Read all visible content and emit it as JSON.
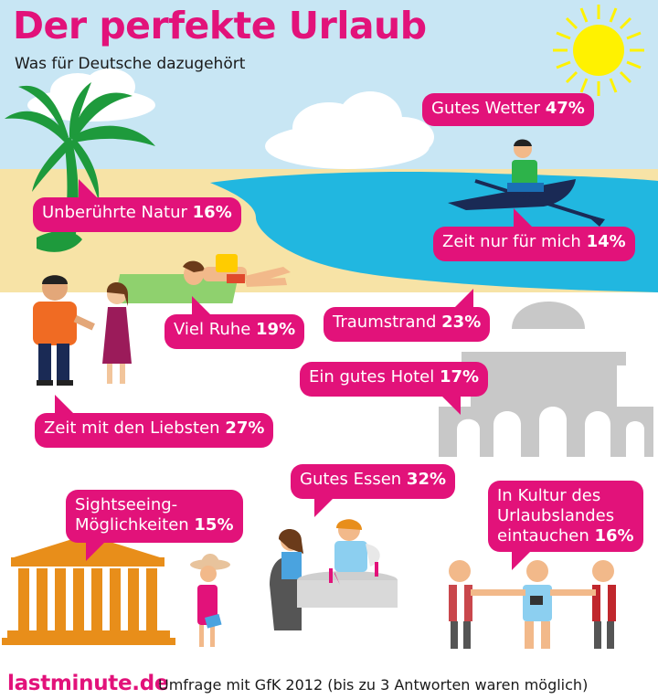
{
  "header": {
    "title": "Der perfekte Urlaub",
    "subtitle": "Was für Deutsche dazugehört"
  },
  "chart_data": {
    "type": "bar",
    "title": "Der perfekte Urlaub",
    "subtitle": "Was für Deutsche dazugehört",
    "unit": "%",
    "categories": [
      "Gutes Wetter",
      "Unberührte Natur",
      "Zeit nur für mich",
      "Viel Ruhe",
      "Traumstrand",
      "Ein gutes Hotel",
      "Zeit mit den Liebsten",
      "Gutes Essen",
      "Sightseeing-Möglichkeiten",
      "In Kultur des Urlaubslandes eintauchen"
    ],
    "values": [
      47,
      16,
      14,
      19,
      23,
      17,
      27,
      32,
      15,
      16
    ],
    "labels": {
      "wetter": {
        "line1": "Gutes Wetter ",
        "value": "47%"
      },
      "natur": {
        "line1": "Unberührte Natur ",
        "value": "16%"
      },
      "zeit_mich": {
        "line1": "Zeit nur für mich ",
        "value": "14%"
      },
      "ruhe": {
        "line1": "Viel Ruhe ",
        "value": "19%"
      },
      "strand": {
        "line1": "Traumstrand ",
        "value": "23%"
      },
      "hotel": {
        "line1": "Ein gutes Hotel ",
        "value": "17%"
      },
      "liebsten": {
        "line1": "Zeit mit den Liebsten ",
        "value": "27%"
      },
      "essen": {
        "line1": "Gutes Essen ",
        "value": "32%"
      },
      "sightseeing": {
        "line1": "Sightseeing-",
        "line2": "Möglichkeiten ",
        "value": "15%"
      },
      "kultur": {
        "line1": "In Kultur des",
        "line2": "Urlaubslandes",
        "line3": "eintauchen ",
        "value": "16%"
      }
    }
  },
  "footer": {
    "brand": "lastminute.de",
    "note": "Umfrage mit GfK 2012 (bis zu 3 Antworten waren möglich)"
  },
  "colors": {
    "accent": "#e2127a",
    "sky": "#c8e6f4",
    "sea": "#21b7e0",
    "sand": "#f7e3a6",
    "sun": "#fff200"
  }
}
